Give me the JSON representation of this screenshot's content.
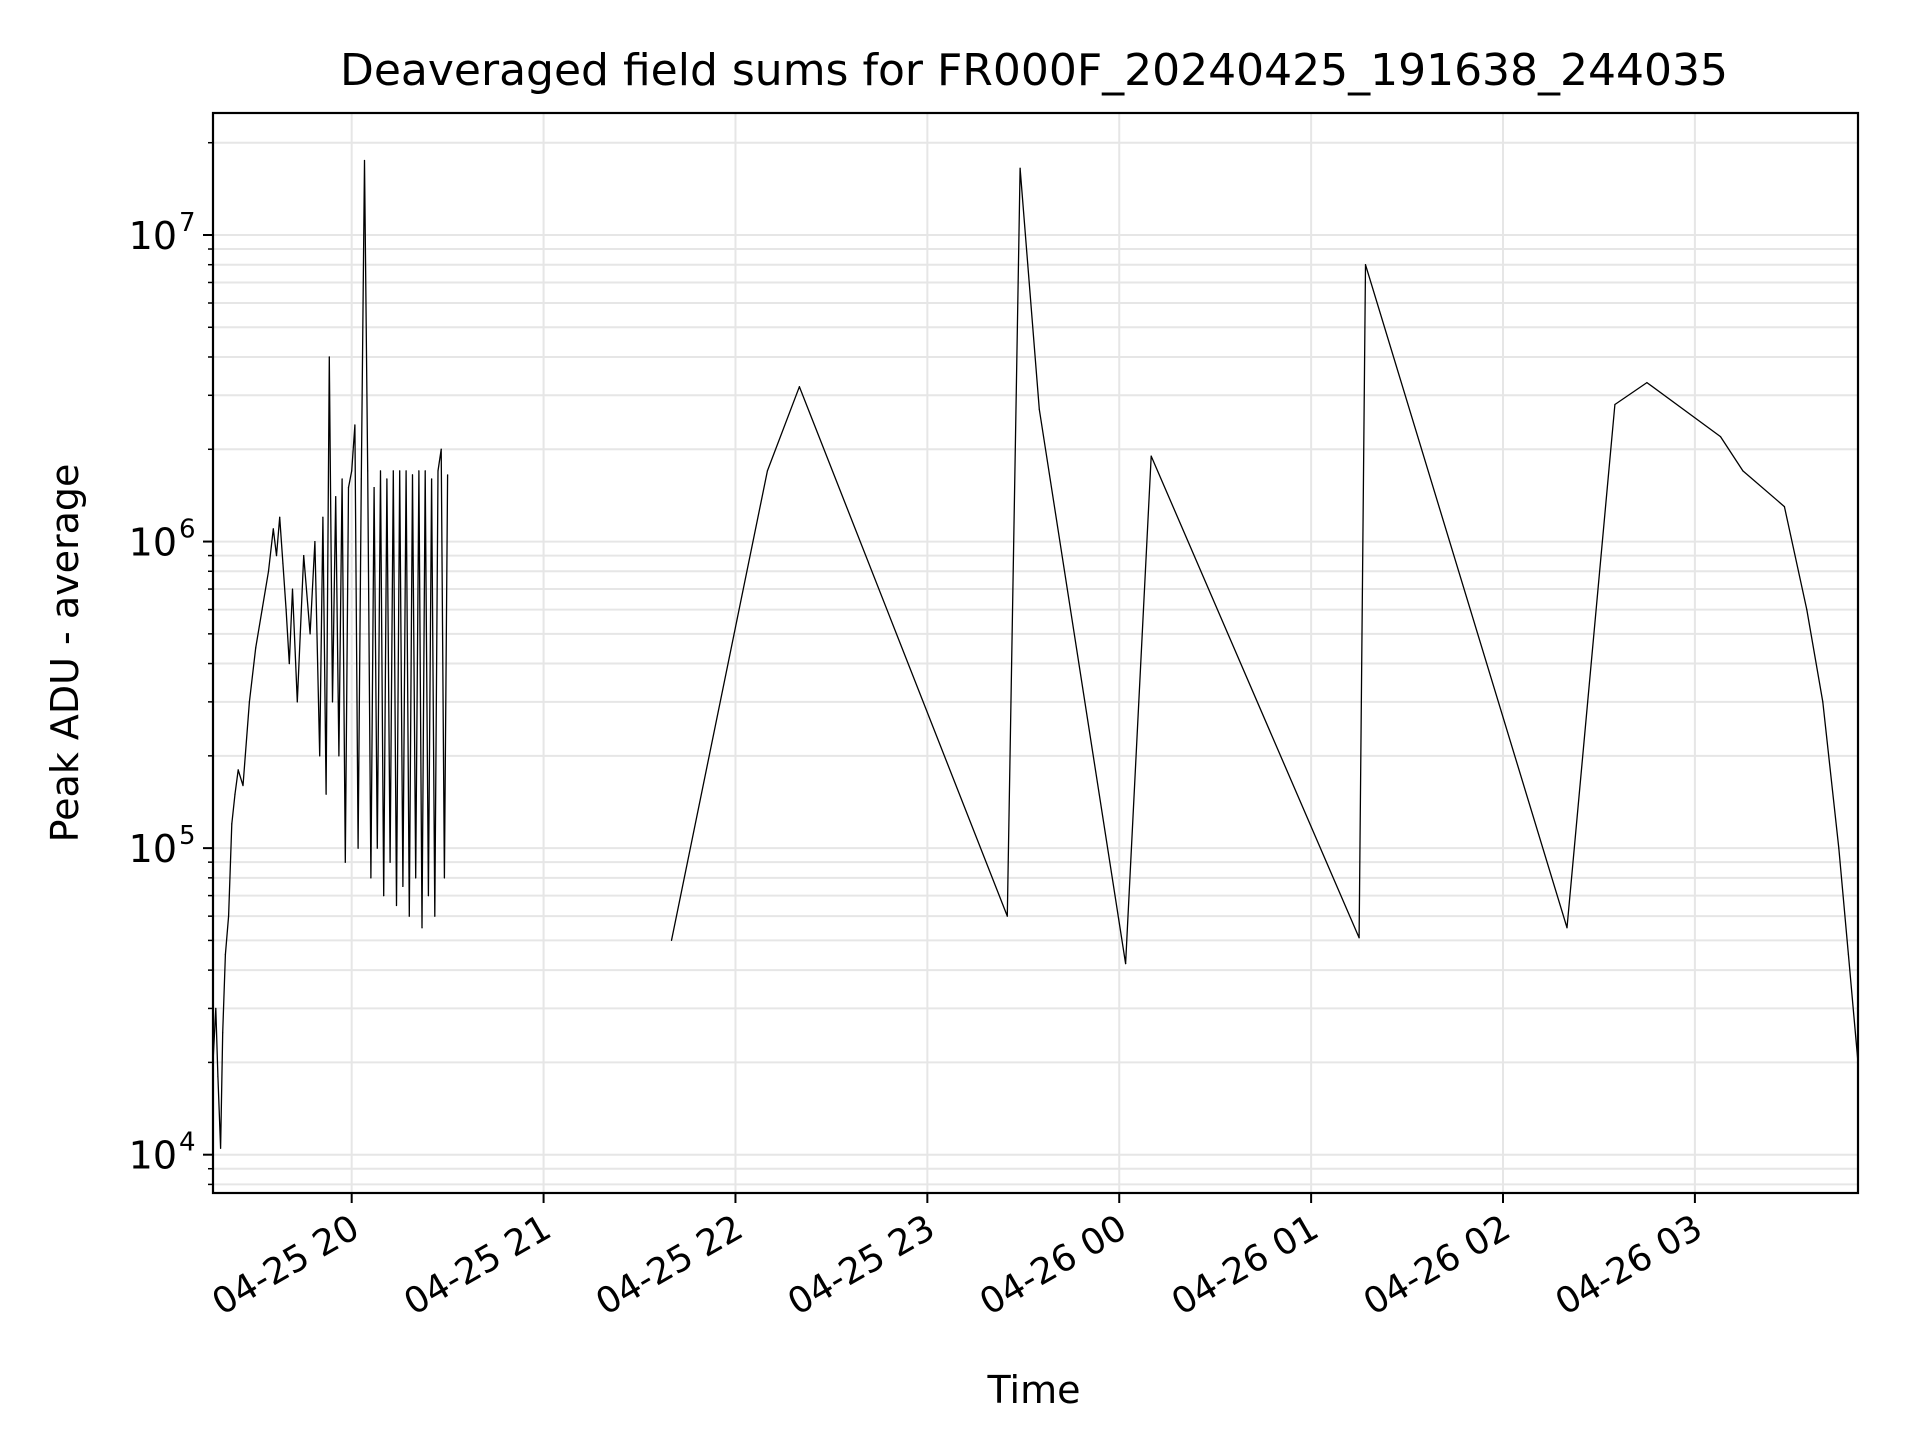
{
  "chart_data": {
    "type": "line",
    "title": "Deaveraged field sums for FR000F_20240425_191638_244035",
    "xlabel": "Time",
    "ylabel": "Peak ADU - average",
    "y_scale": "log",
    "ylim": [
      7500,
      25000000
    ],
    "xlim": [
      "2024-04-25 19:16:38",
      "2024-04-26 03:51:00"
    ],
    "grid": true,
    "line_color": "#000000",
    "grid_color": "#e6e6e6",
    "x_ticks": [
      {
        "t": "2024-04-25 20:00",
        "label": "04-25 20"
      },
      {
        "t": "2024-04-25 21:00",
        "label": "04-25 21"
      },
      {
        "t": "2024-04-25 22:00",
        "label": "04-25 22"
      },
      {
        "t": "2024-04-25 23:00",
        "label": "04-25 23"
      },
      {
        "t": "2024-04-26 00:00",
        "label": "04-26 00"
      },
      {
        "t": "2024-04-26 01:00",
        "label": "04-26 01"
      },
      {
        "t": "2024-04-26 02:00",
        "label": "04-26 02"
      },
      {
        "t": "2024-04-26 03:00",
        "label": "04-26 03"
      }
    ],
    "y_ticks": [
      {
        "value": 10000,
        "base": "10",
        "exp": "4"
      },
      {
        "value": 100000,
        "base": "10",
        "exp": "5"
      },
      {
        "value": 1000000,
        "base": "10",
        "exp": "6"
      },
      {
        "value": 10000000,
        "base": "10",
        "exp": "7"
      }
    ],
    "series": [
      {
        "x": [
          "2024-04-25 19:16:38",
          "2024-04-25 19:17:30",
          "2024-04-25 19:18:10",
          "2024-04-25 19:19:00",
          "2024-04-25 19:19:40",
          "2024-04-25 19:20:30",
          "2024-04-25 19:21:30",
          "2024-04-25 19:22:30",
          "2024-04-25 19:23:30",
          "2024-04-25 19:24:30",
          "2024-04-25 19:26:00",
          "2024-04-25 19:28:00",
          "2024-04-25 19:30:00",
          "2024-04-25 19:32:00",
          "2024-04-25 19:34:00",
          "2024-04-25 19:35:30",
          "2024-04-25 19:36:30",
          "2024-04-25 19:37:30",
          "2024-04-25 19:38:30",
          "2024-04-25 19:39:30",
          "2024-04-25 19:40:30",
          "2024-04-25 19:41:30",
          "2024-04-25 19:43:00",
          "2024-04-25 19:45:00",
          "2024-04-25 19:47:00",
          "2024-04-25 19:48:30",
          "2024-04-25 19:50:00",
          "2024-04-25 19:51:00",
          "2024-04-25 19:52:00",
          "2024-04-25 19:53:00",
          "2024-04-25 19:54:00",
          "2024-04-25 19:55:00",
          "2024-04-25 19:56:00",
          "2024-04-25 19:57:00",
          "2024-04-25 19:58:00",
          "2024-04-25 19:59:00",
          "2024-04-25 20:00:00",
          "2024-04-25 20:01:00",
          "2024-04-25 20:02:00",
          "2024-04-25 20:03:00",
          "2024-04-25 20:04:00",
          "2024-04-25 20:05:00",
          "2024-04-25 20:06:00",
          "2024-04-25 20:07:00",
          "2024-04-25 20:08:00",
          "2024-04-25 20:09:00",
          "2024-04-25 20:10:00",
          "2024-04-25 20:11:00",
          "2024-04-25 20:12:00",
          "2024-04-25 20:13:00",
          "2024-04-25 20:14:00",
          "2024-04-25 20:15:00",
          "2024-04-25 20:16:00",
          "2024-04-25 20:17:00",
          "2024-04-25 20:18:00",
          "2024-04-25 20:19:00",
          "2024-04-25 20:20:00",
          "2024-04-25 20:21:00",
          "2024-04-25 20:22:00",
          "2024-04-25 20:23:00",
          "2024-04-25 20:24:00",
          "2024-04-25 20:25:00",
          "2024-04-25 20:26:00",
          "2024-04-25 20:27:00",
          "2024-04-25 20:28:00",
          "2024-04-25 20:29:00",
          "2024-04-25 20:30:00"
        ],
        "y": [
          20000,
          30000,
          18000,
          10500,
          25000,
          45000,
          60000,
          120000,
          150000,
          180000,
          160000,
          300000,
          450000,
          600000,
          800000,
          1100000,
          900000,
          1200000,
          850000,
          600000,
          400000,
          700000,
          300000,
          900000,
          500000,
          1000000,
          200000,
          1200000,
          150000,
          4000000,
          300000,
          1400000,
          200000,
          1600000,
          90000,
          1500000,
          1700000,
          2400000,
          100000,
          1600000,
          17500000,
          1700000,
          80000,
          1500000,
          100000,
          1700000,
          70000,
          1600000,
          90000,
          1700000,
          65000,
          1700000,
          75000,
          1700000,
          60000,
          1650000,
          80000,
          1700000,
          55000,
          1700000,
          70000,
          1600000,
          60000,
          1700000,
          2000000,
          80000,
          1650000
        ]
      },
      {
        "x": [
          "2024-04-25 21:40:00",
          "2024-04-25 22:10:00",
          "2024-04-25 22:20:00",
          "2024-04-25 23:25:00",
          "2024-04-25 23:29:00",
          "2024-04-25 23:35:00",
          "2024-04-26 00:02:00",
          "2024-04-26 00:10:00",
          "2024-04-26 01:15:00",
          "2024-04-26 01:17:00",
          "2024-04-26 02:20:00",
          "2024-04-26 02:35:00",
          "2024-04-26 02:45:00",
          "2024-04-26 03:08:00",
          "2024-04-26 03:15:00",
          "2024-04-26 03:28:00",
          "2024-04-26 03:35:00",
          "2024-04-26 03:40:00",
          "2024-04-26 03:45:00",
          "2024-04-26 03:48:00",
          "2024-04-26 03:51:00"
        ],
        "y": [
          50000,
          1700000,
          3200000,
          60000,
          16500000,
          2700000,
          42000,
          1900000,
          51000,
          8000000,
          55000,
          2800000,
          3300000,
          2200000,
          1700000,
          1300000,
          600000,
          300000,
          100000,
          45000,
          20000
        ]
      }
    ]
  }
}
